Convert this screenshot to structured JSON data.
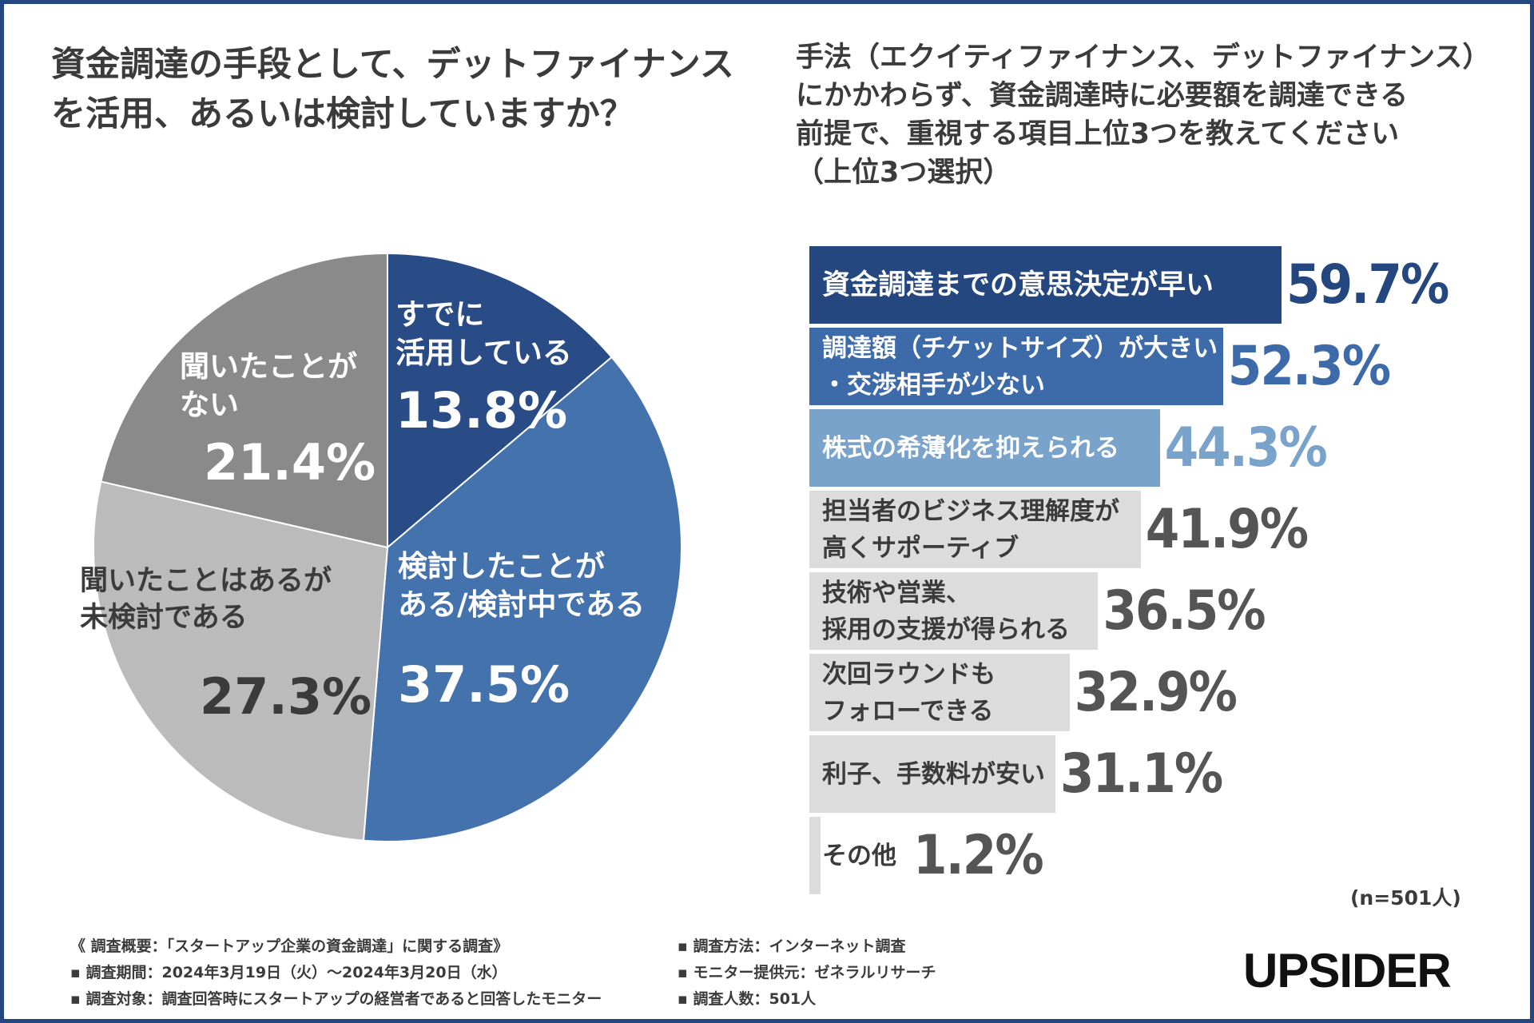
{
  "pie_title": [
    "資金調達の手段として、デットファイナンス",
    "を活用、あるいは検討していますか？"
  ],
  "bar_title": [
    "手法（エクイティファイナンス、デットファイナンス）",
    "にかかわらず、資金調達時に必要額を調達できる",
    "前提で、重視する項目上位3つを教えてください",
    "（上位3つ選択）"
  ],
  "chart_data": [
    {
      "type": "pie",
      "title": "資金調達の手段として、デットファイナンスを活用、あるいは検討していますか？",
      "slices": [
        {
          "label": [
            "すでに",
            "活用している"
          ],
          "value": 13.8,
          "display": "13.8%",
          "color": "#2a4c86",
          "text_color": "#ffffff"
        },
        {
          "label": [
            "検討したことが",
            "ある/検討中である"
          ],
          "value": 37.5,
          "display": "37.5%",
          "color": "#4472ad",
          "text_color": "#ffffff"
        },
        {
          "label": [
            "聞いたことはあるが",
            "未検討である"
          ],
          "value": 27.3,
          "display": "27.3%",
          "color": "#bbbbbb",
          "text_color": "#3b3b3b"
        },
        {
          "label": [
            "聞いたことが",
            "ない"
          ],
          "value": 21.4,
          "display": "21.4%",
          "color": "#8a8a8a",
          "text_color": "#ffffff"
        }
      ]
    },
    {
      "type": "bar",
      "orientation": "horizontal",
      "title": "手法（エクイティファイナンス、デットファイナンス）にかかわらず、資金調達時に必要額を調達できる前提で、重視する項目上位3つを教えてください（上位3つ選択）",
      "categories": [
        [
          "資金調達までの意思決定が早い"
        ],
        [
          "調達額（チケットサイズ）が大きい",
          "・交渉相手が少ない"
        ],
        [
          "株式の希薄化を抑えられる"
        ],
        [
          "担当者のビジネス理解度が",
          "高くサポーティブ"
        ],
        [
          "技術や営業、",
          "採用の支援が得られる"
        ],
        [
          "次回ラウンドも",
          "フォローできる"
        ],
        [
          "利子、手数料が安い"
        ],
        [
          "その他"
        ]
      ],
      "values": [
        59.7,
        52.3,
        44.3,
        41.9,
        36.5,
        32.9,
        31.1,
        1.2
      ],
      "display": [
        "59.7%",
        "52.3%",
        "44.3%",
        "41.9%",
        "36.5%",
        "32.9%",
        "31.1%",
        "1.2%"
      ],
      "bar_colors": [
        "#24477f",
        "#3d6aa8",
        "#7aa3cb",
        "#dcdcdc",
        "#dcdcdc",
        "#dcdcdc",
        "#dcdcdc",
        "#dcdcdc"
      ],
      "label_colors": [
        "#ffffff",
        "#ffffff",
        "#ffffff",
        "#3b3b3b",
        "#3b3b3b",
        "#3b3b3b",
        "#3b3b3b",
        "#3b3b3b"
      ],
      "value_colors": [
        "#24477f",
        "#3d6aa8",
        "#7aa3cb",
        "#555555",
        "#555555",
        "#555555",
        "#555555",
        "#555555"
      ],
      "xlim": [
        0,
        100
      ],
      "n_label": "(n=501人)"
    }
  ],
  "footer_left": [
    "《 調査概要：「スタートアップ企業の資金調達」に関する調査》",
    "▪ 調査期間：2024年3月19日（火）〜2024年3月20日（水）",
    "▪ 調査対象：調査回答時にスタートアップの経営者であると回答したモニター"
  ],
  "footer_right": [
    "▪ 調査方法：インターネット調査",
    "▪ モニター提供元：ゼネラルリサーチ",
    "▪ 調査人数：501人"
  ],
  "logo": "UPSIDER"
}
